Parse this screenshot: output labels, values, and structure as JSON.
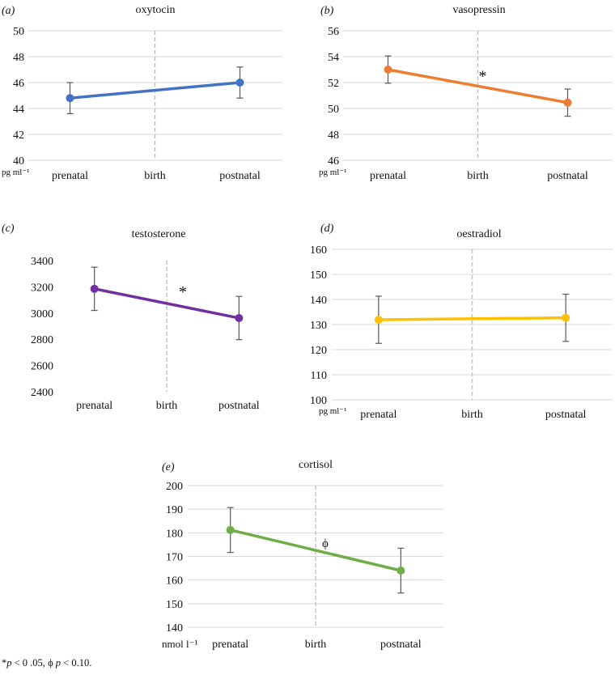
{
  "figure": {
    "categories": [
      "prenatal",
      "birth",
      "postnatal"
    ],
    "footnote": {
      "star_text": "*",
      "p1": "p",
      "threshold1": " < 0 .05, ",
      "phi_text": "ϕ",
      "p2": "p",
      "threshold2": " < 0.10."
    }
  },
  "chart_data": [
    {
      "type": "line",
      "panel": "(a)",
      "title": "oxytocin",
      "unit": "pg ml⁻¹",
      "categories": [
        "prenatal",
        "birth",
        "postnatal"
      ],
      "series": [
        {
          "name": "oxytocin",
          "color": "#4472C4",
          "points": [
            {
              "x": "prenatal",
              "y": 44.8,
              "err": 1.2
            },
            {
              "x": "postnatal",
              "y": 46.0,
              "err": 1.2
            }
          ]
        }
      ],
      "ylim": [
        40,
        50
      ],
      "yticks": [
        40,
        42,
        44,
        46,
        48,
        50
      ],
      "grid": true,
      "birth_divider": true,
      "annotation": ""
    },
    {
      "type": "line",
      "panel": "(b)",
      "title": "vasopressin",
      "unit": "pg ml⁻¹",
      "categories": [
        "prenatal",
        "birth",
        "postnatal"
      ],
      "series": [
        {
          "name": "vasopressin",
          "color": "#ED7D31",
          "points": [
            {
              "x": "prenatal",
              "y": 53.0,
              "err": 1.05
            },
            {
              "x": "postnatal",
              "y": 50.45,
              "err": 1.05
            }
          ]
        }
      ],
      "ylim": [
        46,
        56
      ],
      "yticks": [
        46,
        48,
        50,
        52,
        54,
        56
      ],
      "grid": true,
      "birth_divider": true,
      "annotation": "*"
    },
    {
      "type": "line",
      "panel": "(c)",
      "title": "testosterone",
      "unit": "",
      "categories": [
        "prenatal",
        "birth",
        "postnatal"
      ],
      "series": [
        {
          "name": "testosterone",
          "color": "#7030A0",
          "points": [
            {
              "x": "prenatal",
              "y": 3185,
              "err": 165
            },
            {
              "x": "postnatal",
              "y": 2962,
              "err": 165
            }
          ]
        }
      ],
      "ylim": [
        2400,
        3400
      ],
      "yticks": [
        2400,
        2600,
        2800,
        3000,
        3200,
        3400
      ],
      "grid": false,
      "birth_divider": true,
      "annotation": "*"
    },
    {
      "type": "line",
      "panel": "(d)",
      "title": "oestradiol",
      "unit": "pg ml⁻¹",
      "categories": [
        "prenatal",
        "birth",
        "postnatal"
      ],
      "series": [
        {
          "name": "oestradiol",
          "color": "#FFC000",
          "points": [
            {
              "x": "prenatal",
              "y": 131.9,
              "err": 9.4
            },
            {
              "x": "postnatal",
              "y": 132.7,
              "err": 9.4
            }
          ]
        }
      ],
      "ylim": [
        100,
        160
      ],
      "yticks": [
        100,
        110,
        120,
        130,
        140,
        150,
        160
      ],
      "grid": true,
      "birth_divider": true,
      "annotation": ""
    },
    {
      "type": "line",
      "panel": "(e)",
      "title": "cortisol",
      "unit": "nmol l⁻¹",
      "categories": [
        "prenatal",
        "birth",
        "postnatal"
      ],
      "series": [
        {
          "name": "cortisol",
          "color": "#70AD47",
          "points": [
            {
              "x": "prenatal",
              "y": 181.2,
              "err": 9.5
            },
            {
              "x": "postnatal",
              "y": 164.0,
              "err": 9.5
            }
          ]
        }
      ],
      "ylim": [
        140,
        200
      ],
      "yticks": [
        140,
        150,
        160,
        170,
        180,
        190,
        200
      ],
      "grid": true,
      "birth_divider": true,
      "annotation": "ϕ"
    }
  ]
}
